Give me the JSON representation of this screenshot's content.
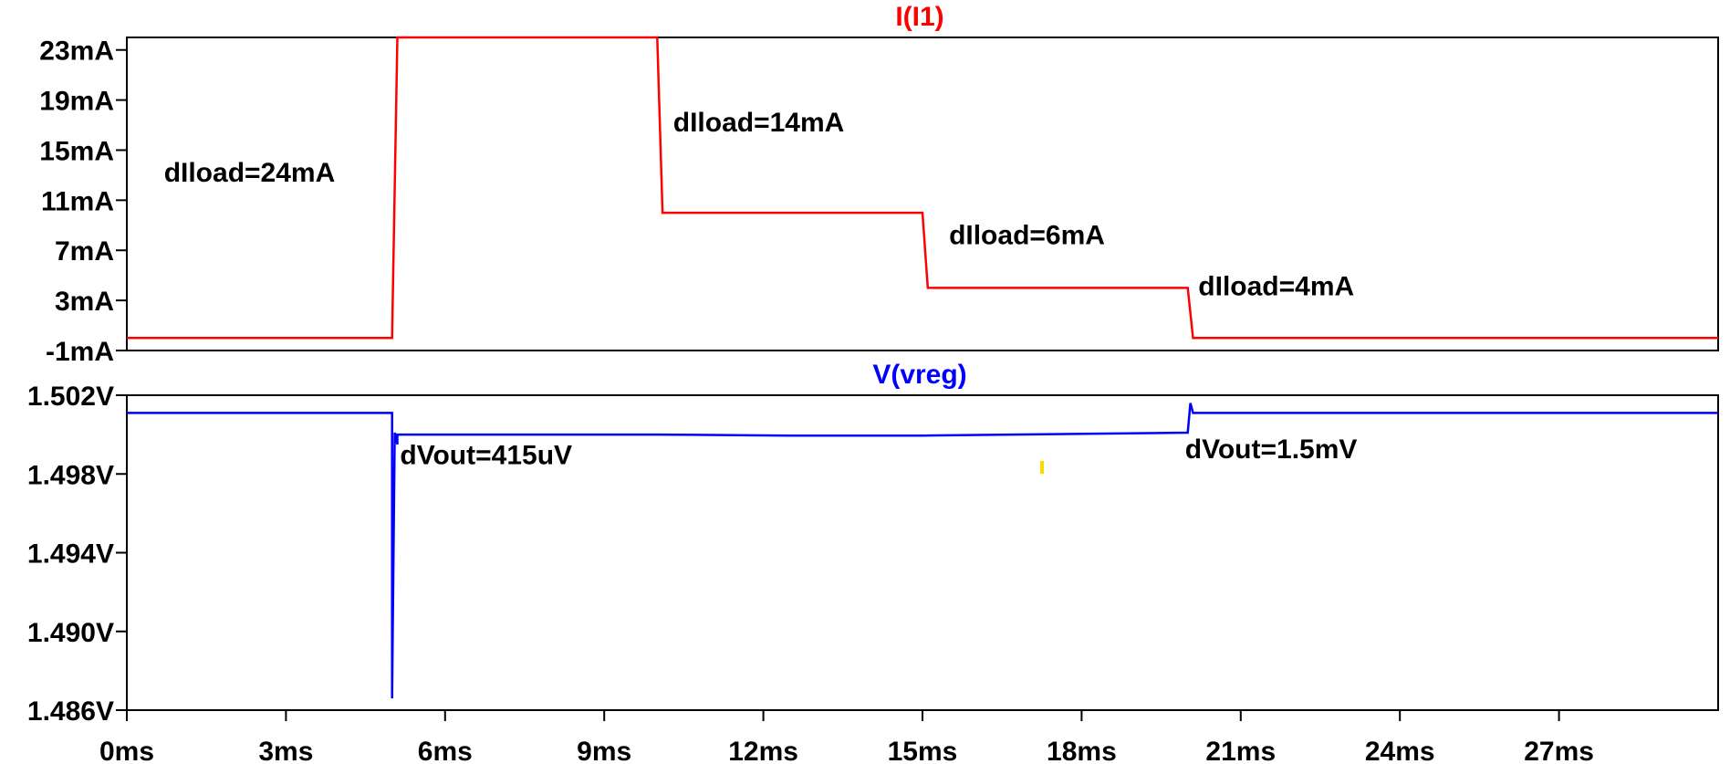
{
  "chart_data": [
    {
      "type": "line",
      "title": "I(I1)",
      "color": "#ff0000",
      "ylim": [
        -1,
        24
      ],
      "y_unit": "mA",
      "y_ticks": [
        "23mA",
        "19mA",
        "15mA",
        "11mA",
        "7mA",
        "3mA",
        "-1mA"
      ],
      "y_tick_values": [
        23,
        19,
        15,
        11,
        7,
        3,
        -1
      ],
      "x_unit": "ms",
      "series": [
        {
          "x": [
            0,
            5.0,
            5.1,
            10.0,
            10.1,
            15.0,
            15.1,
            20.0,
            20.1,
            30
          ],
          "y": [
            0,
            0,
            24,
            24,
            10,
            10,
            4,
            4,
            0,
            0
          ]
        }
      ],
      "annotations": [
        {
          "text": "dIload=24mA",
          "x": 0.7,
          "y": 12.5
        },
        {
          "text": "dIload=14mA",
          "x": 10.3,
          "y": 16.5
        },
        {
          "text": "dIload=6mA",
          "x": 15.5,
          "y": 7.5
        },
        {
          "text": "dIload=4mA",
          "x": 20.2,
          "y": 3.4
        }
      ]
    },
    {
      "type": "line",
      "title": "V(vreg)",
      "color": "#0000ff",
      "ylim": [
        1.486,
        1.502
      ],
      "y_unit": "V",
      "y_ticks": [
        "1.502V",
        "1.498V",
        "1.494V",
        "1.490V",
        "1.486V"
      ],
      "y_tick_values": [
        1.502,
        1.498,
        1.494,
        1.49,
        1.486
      ],
      "x_unit": "ms",
      "x_ticks": [
        "0ms",
        "3ms",
        "6ms",
        "9ms",
        "12ms",
        "15ms",
        "18ms",
        "21ms",
        "24ms",
        "27ms"
      ],
      "x_tick_values": [
        0,
        3,
        6,
        9,
        12,
        15,
        18,
        21,
        24,
        27
      ],
      "xlim": [
        0,
        30
      ],
      "series": [
        {
          "x": [
            0,
            5.0,
            5.0,
            5.05,
            5.1,
            5.1,
            10.0,
            12.5,
            15.0,
            20.0,
            20.05,
            20.1,
            30
          ],
          "y": [
            1.5011,
            1.5011,
            1.4866,
            1.5001,
            1.4995,
            1.5,
            1.5,
            1.49995,
            1.49995,
            1.5001,
            1.5016,
            1.5011,
            1.5011
          ]
        }
      ],
      "annotations": [
        {
          "text": "dVout=415uV",
          "x": 5.15,
          "y": 1.4985
        },
        {
          "text": "dVout=1.5mV",
          "x": 19.95,
          "y": 1.4988
        }
      ]
    }
  ]
}
